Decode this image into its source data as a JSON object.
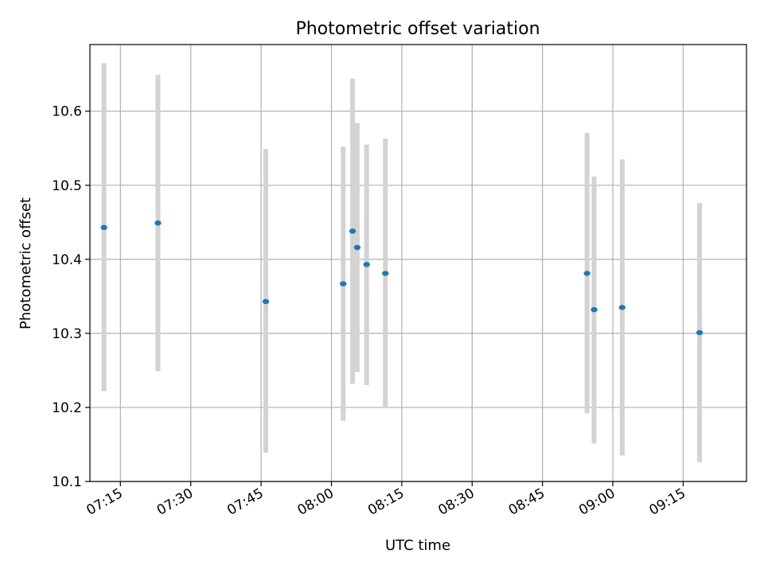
{
  "chart_data": {
    "type": "scatter",
    "title": "Photometric offset variation",
    "xlabel": "UTC time",
    "ylabel": "Photometric offset",
    "x_ticks": [
      "07:15",
      "07:30",
      "07:45",
      "08:00",
      "08:15",
      "08:30",
      "08:45",
      "09:00",
      "09:15"
    ],
    "y_ticks": [
      "10.1",
      "10.2",
      "10.3",
      "10.4",
      "10.5",
      "10.6"
    ],
    "xlim": [
      "07:08:30",
      "09:28:30"
    ],
    "ylim": [
      10.1,
      10.69
    ],
    "grid": true,
    "marker_color": "#1f77b4",
    "errorbar_color": "#d3d3d3",
    "points": [
      {
        "time": "07:11:30",
        "value": 10.443,
        "low": 10.222,
        "high": 10.665
      },
      {
        "time": "07:23:00",
        "value": 10.449,
        "low": 10.249,
        "high": 10.649
      },
      {
        "time": "07:46:00",
        "value": 10.343,
        "low": 10.139,
        "high": 10.549
      },
      {
        "time": "08:02:30",
        "value": 10.367,
        "low": 10.182,
        "high": 10.552
      },
      {
        "time": "08:04:30",
        "value": 10.438,
        "low": 10.232,
        "high": 10.644
      },
      {
        "time": "08:05:30",
        "value": 10.416,
        "low": 10.248,
        "high": 10.584
      },
      {
        "time": "08:07:30",
        "value": 10.393,
        "low": 10.23,
        "high": 10.555
      },
      {
        "time": "08:11:30",
        "value": 10.381,
        "low": 10.199,
        "high": 10.563
      },
      {
        "time": "08:54:30",
        "value": 10.381,
        "low": 10.192,
        "high": 10.571
      },
      {
        "time": "08:56:00",
        "value": 10.332,
        "low": 10.151,
        "high": 10.512
      },
      {
        "time": "09:02:00",
        "value": 10.335,
        "low": 10.135,
        "high": 10.535
      },
      {
        "time": "09:18:30",
        "value": 10.301,
        "low": 10.126,
        "high": 10.476
      }
    ]
  }
}
